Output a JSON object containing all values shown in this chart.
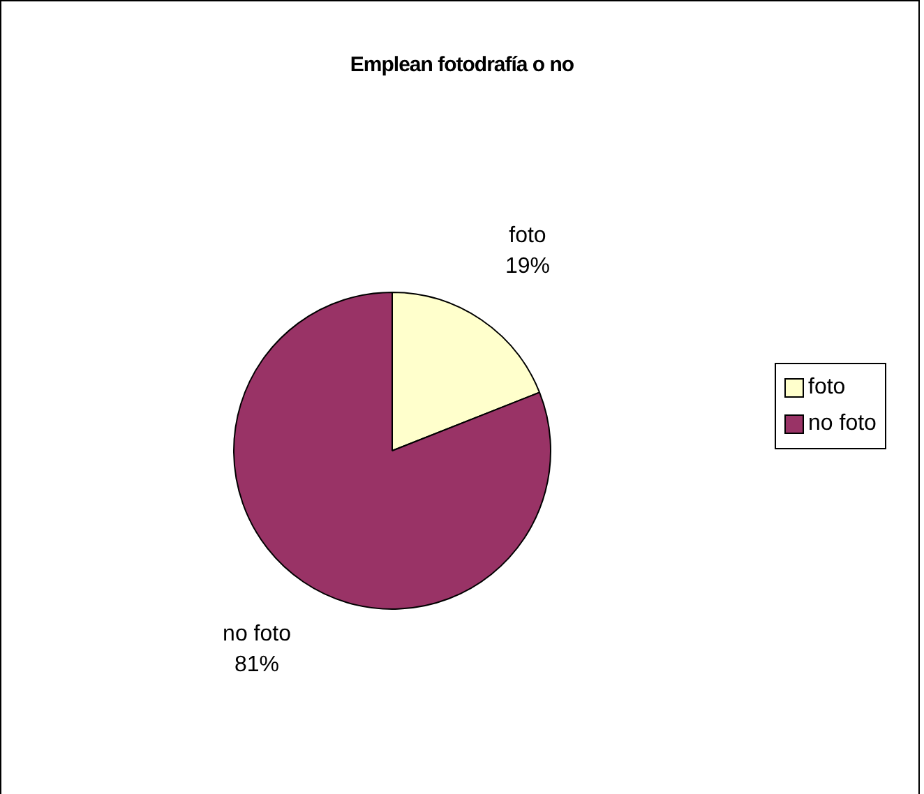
{
  "chart_data": {
    "type": "pie",
    "title": "Emplean fotodrafía o no",
    "categories": [
      "foto",
      "no foto"
    ],
    "values": [
      19,
      81
    ],
    "colors": [
      "#ffffcc",
      "#993366"
    ],
    "value_labels": [
      "19%",
      "81%"
    ],
    "legend": "right"
  }
}
